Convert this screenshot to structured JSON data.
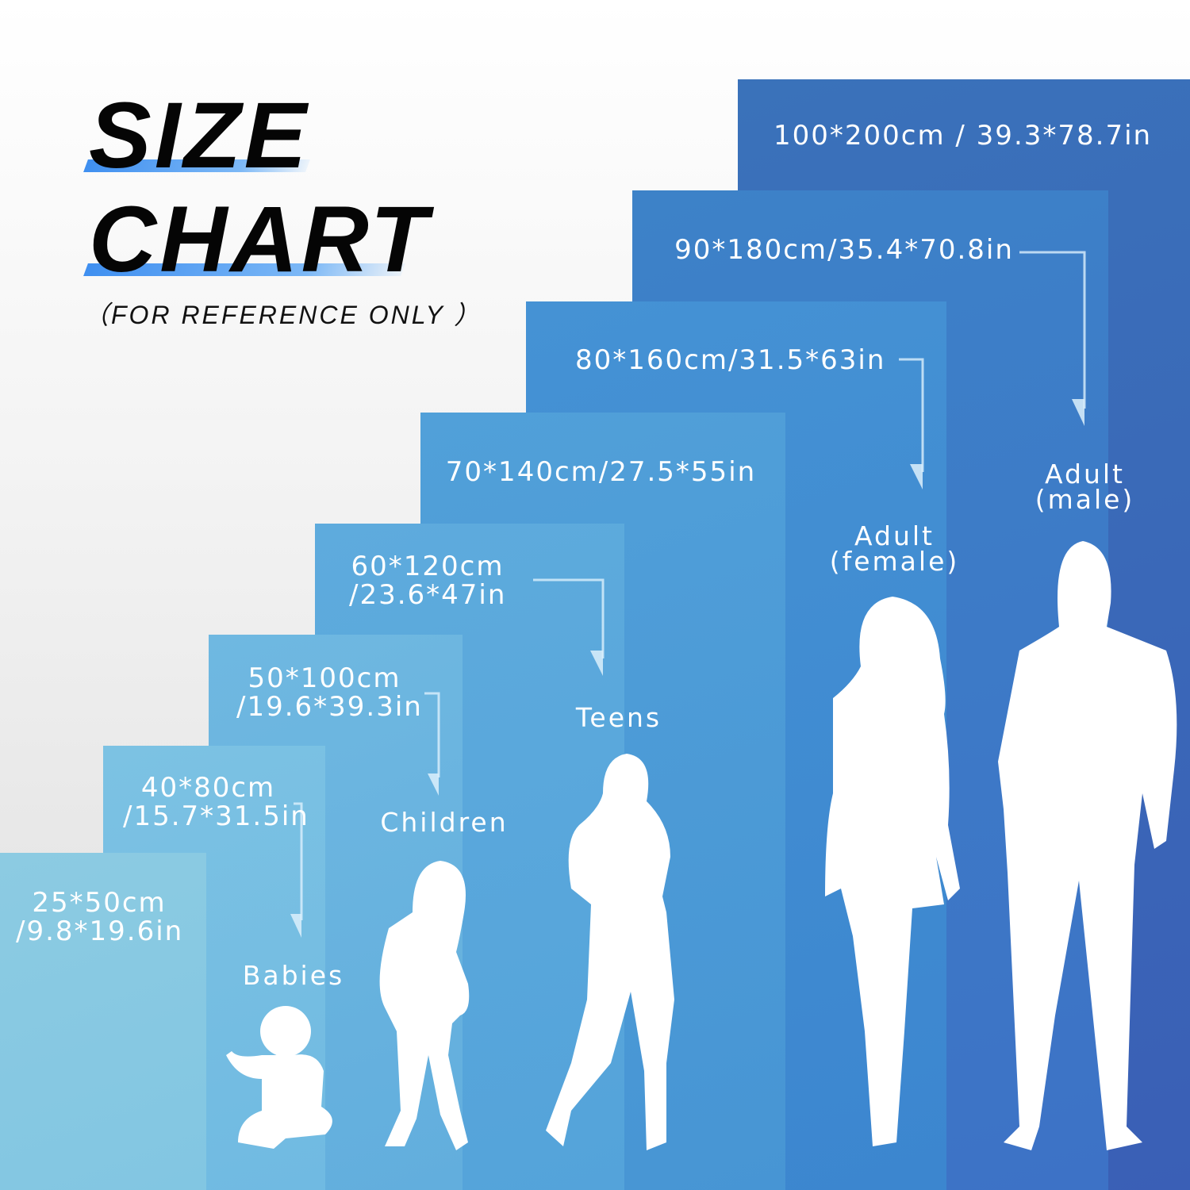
{
  "title": {
    "line1": "SIZE",
    "line2": "CHART",
    "subtitle": "（FOR REFERENCE ONLY ）"
  },
  "accent_color": "#4a9cf2",
  "sizes": [
    {
      "cm_line": "25*50cm",
      "in_line": "/9.8*19.6in",
      "color": "#8fcbe2"
    },
    {
      "cm_line": "40*80cm",
      "in_line": "/15.7*31.5in",
      "color": "#7ac1e3"
    },
    {
      "cm_line": "50*100cm",
      "in_line": "/19.6*39.3in",
      "color": "#6cb6e0"
    },
    {
      "cm_line": "60*120cm",
      "in_line": "/23.6*47in",
      "color": "#5ca9dc"
    },
    {
      "cm_line": "70*140cm/27.5*55in",
      "in_line": "",
      "color": "#4f9dd8"
    },
    {
      "cm_line": "80*160cm/31.5*63in",
      "in_line": "",
      "color": "#428fd3"
    },
    {
      "cm_line": "90*180cm/35.4*70.8in",
      "in_line": "",
      "color": "#3c80c9"
    },
    {
      "cm_line": "100*200cm / 39.3*78.7in",
      "in_line": "",
      "color": "#3a6fb9"
    }
  ],
  "categories": {
    "babies": "Babies",
    "children": "Children",
    "teens": "Teens",
    "adult_female_1": "Adult",
    "adult_female_2": "(female)",
    "adult_male_1": "Adult",
    "adult_male_2": "(male)"
  }
}
